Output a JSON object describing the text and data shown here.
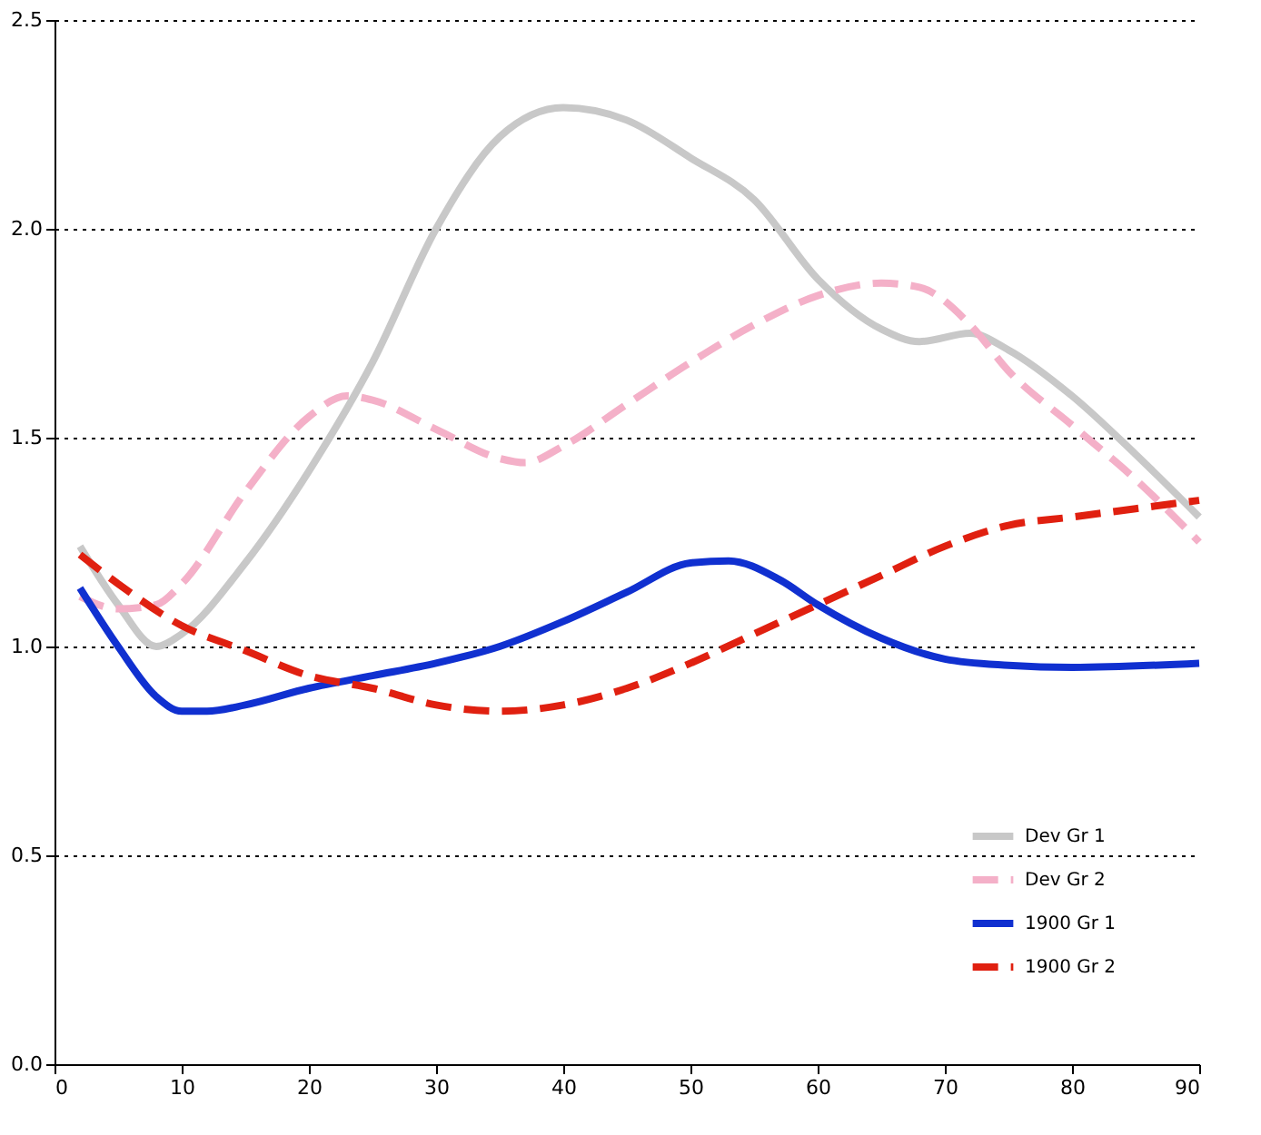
{
  "chart_data": {
    "type": "line",
    "xlim": [
      0,
      90
    ],
    "ylim": [
      0,
      2.5
    ],
    "xticks": [
      0,
      10,
      20,
      30,
      40,
      50,
      60,
      70,
      80,
      90
    ],
    "yticks": [
      {
        "value": 0,
        "label": "0.0"
      },
      {
        "value": 0.5,
        "label": "0.5"
      },
      {
        "value": 1,
        "label": "1.0"
      },
      {
        "value": 1.5,
        "label": "1.5"
      },
      {
        "value": 2,
        "label": "2.0"
      },
      {
        "value": 2.5,
        "label": "2.5"
      }
    ],
    "grid": "y",
    "legend": "bottom right",
    "marker": "none",
    "series": [
      {
        "name": "Dev Gr 1",
        "color": "#c8c8c8",
        "line_style": "solid",
        "x": [
          2,
          5,
          8,
          10,
          15,
          20,
          25,
          30,
          35,
          40,
          45,
          50,
          55,
          60,
          65,
          68,
          72,
          75,
          80,
          85,
          90
        ],
        "values": [
          1.24,
          1.1,
          1.0,
          1.03,
          1.2,
          1.42,
          1.68,
          2.0,
          2.22,
          2.29,
          2.26,
          2.17,
          2.07,
          1.88,
          1.76,
          1.73,
          1.75,
          1.71,
          1.6,
          1.46,
          1.31
        ]
      },
      {
        "name": "Dev Gr 2",
        "color": "#f4b0c8",
        "line_style": "dashed",
        "x": [
          2,
          5,
          8,
          10,
          15,
          20,
          23,
          25,
          30,
          35,
          37,
          40,
          45,
          50,
          55,
          60,
          65,
          68,
          72,
          75,
          80,
          85,
          90
        ],
        "values": [
          1.12,
          1.09,
          1.1,
          1.15,
          1.37,
          1.55,
          1.6,
          1.59,
          1.52,
          1.45,
          1.44,
          1.48,
          1.58,
          1.68,
          1.77,
          1.84,
          1.87,
          1.86,
          1.77,
          1.66,
          1.53,
          1.4,
          1.25
        ]
      },
      {
        "name": "1900 Gr 1",
        "color": "#1030d0",
        "line_style": "solid",
        "x": [
          2,
          5,
          8,
          10,
          12,
          15,
          20,
          25,
          30,
          35,
          40,
          45,
          50,
          53,
          57,
          60,
          65,
          70,
          75,
          80,
          90
        ],
        "values": [
          1.14,
          1.0,
          0.88,
          0.845,
          0.845,
          0.86,
          0.9,
          0.93,
          0.96,
          1.0,
          1.06,
          1.13,
          1.2,
          1.205,
          1.16,
          1.1,
          1.02,
          0.97,
          0.955,
          0.95,
          0.96
        ]
      },
      {
        "name": "1900 Gr 2",
        "color": "#e02010",
        "line_style": "dashed",
        "x": [
          2,
          5,
          10,
          15,
          20,
          25,
          30,
          35,
          40,
          45,
          50,
          55,
          60,
          65,
          70,
          75,
          80,
          85,
          90
        ],
        "values": [
          1.22,
          1.15,
          1.05,
          0.99,
          0.93,
          0.9,
          0.86,
          0.845,
          0.86,
          0.9,
          0.96,
          1.03,
          1.1,
          1.17,
          1.24,
          1.29,
          1.31,
          1.33,
          1.35
        ]
      }
    ]
  }
}
